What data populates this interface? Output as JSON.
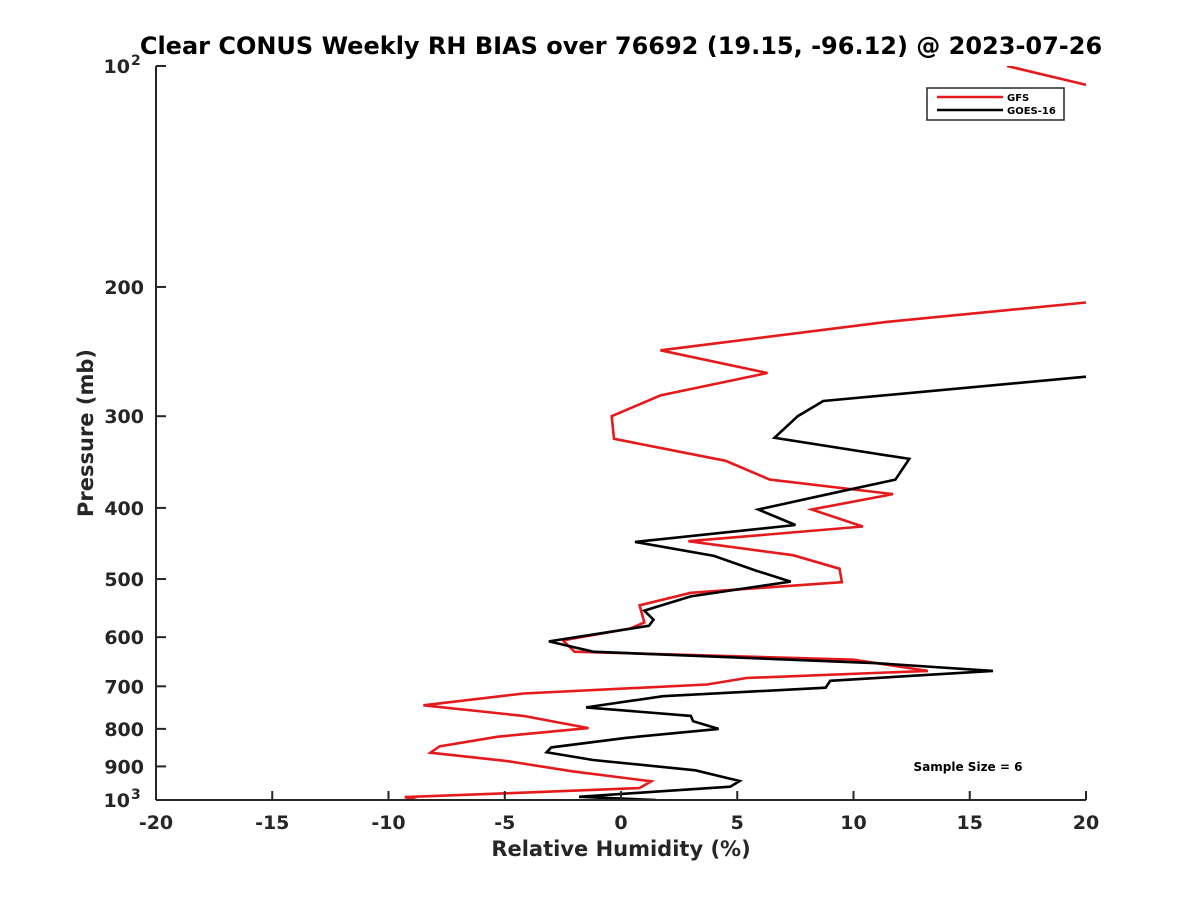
{
  "chart_data": {
    "type": "line",
    "title": "Clear CONUS Weekly RH BIAS over 76692 (19.15, -96.12) @ 2023-07-26",
    "xlabel": "Relative Humidity (%)",
    "ylabel": "Pressure (mb)",
    "xlim": [
      -20,
      20
    ],
    "ylim": [
      100,
      1000
    ],
    "yscale": "log",
    "yreversed": true,
    "grid": false,
    "legend_position": "top-right",
    "annotation": "Sample Size = 6",
    "x_ticks": [
      -20,
      -15,
      -10,
      -5,
      0,
      5,
      10,
      15,
      20
    ],
    "x_tick_labels": [
      "-20",
      "-15",
      "-10",
      "-5",
      "0",
      "5",
      "10",
      "15",
      "20"
    ],
    "y_ticks": [
      200,
      300,
      400,
      500,
      600,
      700,
      800,
      900
    ],
    "y_tick_labels": [
      "200",
      "300",
      "400",
      "500",
      "600",
      "700",
      "800",
      "900"
    ],
    "y_power_ticks": [
      {
        "value": 100,
        "base": "10",
        "exp": "2"
      },
      {
        "value": 1000,
        "base": "10",
        "exp": "3"
      }
    ],
    "series": [
      {
        "name": "GFS",
        "color": "#e41a1c",
        "points": [
          [
            16.6,
            100
          ],
          [
            20.5,
            107
          ],
          [
            20.0,
            210
          ],
          [
            11.5,
            223
          ],
          [
            1.7,
            244
          ],
          [
            6.3,
            262
          ],
          [
            1.7,
            281
          ],
          [
            -0.4,
            300
          ],
          [
            -0.3,
            322
          ],
          [
            4.5,
            345
          ],
          [
            6.4,
            366
          ],
          [
            11.7,
            383
          ],
          [
            8.2,
            402
          ],
          [
            10.4,
            424
          ],
          [
            2.9,
            444
          ],
          [
            7.4,
            464
          ],
          [
            9.4,
            484
          ],
          [
            9.5,
            505
          ],
          [
            3.0,
            522
          ],
          [
            0.8,
            543
          ],
          [
            1.0,
            573
          ],
          [
            0.4,
            584
          ],
          [
            -2.5,
            606
          ],
          [
            -2.0,
            628
          ],
          [
            10.0,
            644
          ],
          [
            13.2,
            667
          ],
          [
            5.4,
            682
          ],
          [
            3.7,
            696
          ],
          [
            -4.2,
            716
          ],
          [
            -8.5,
            743
          ],
          [
            -4.2,
            768
          ],
          [
            -1.4,
            798
          ],
          [
            -5.3,
            820
          ],
          [
            -7.8,
            845
          ],
          [
            -8.2,
            862
          ],
          [
            -4.9,
            885
          ],
          [
            -2.1,
            914
          ],
          [
            1.3,
            943
          ],
          [
            0.8,
            963
          ],
          [
            -4.8,
            979
          ],
          [
            -9.3,
            991
          ],
          [
            -8.8,
            1000
          ]
        ]
      },
      {
        "name": "GOES-16",
        "color": "#000000",
        "points": [
          [
            20.0,
            265
          ],
          [
            8.7,
            286
          ],
          [
            7.6,
            300
          ],
          [
            6.6,
            321
          ],
          [
            12.4,
            343
          ],
          [
            11.8,
            366
          ],
          [
            9.1,
            382
          ],
          [
            5.9,
            402
          ],
          [
            7.5,
            422
          ],
          [
            0.6,
            445
          ],
          [
            4.0,
            465
          ],
          [
            5.8,
            487
          ],
          [
            7.3,
            504
          ],
          [
            3.0,
            528
          ],
          [
            1.0,
            552
          ],
          [
            1.4,
            568
          ],
          [
            1.2,
            579
          ],
          [
            -3.1,
            608
          ],
          [
            -1.2,
            628
          ],
          [
            11.0,
            651
          ],
          [
            16.0,
            667
          ],
          [
            9.0,
            688
          ],
          [
            8.8,
            703
          ],
          [
            1.8,
            722
          ],
          [
            -1.5,
            748
          ],
          [
            3.0,
            768
          ],
          [
            3.1,
            781
          ],
          [
            4.2,
            800
          ],
          [
            0.2,
            823
          ],
          [
            -3.0,
            848
          ],
          [
            -3.2,
            861
          ],
          [
            -1.2,
            882
          ],
          [
            3.2,
            911
          ],
          [
            5.1,
            942
          ],
          [
            4.7,
            959
          ],
          [
            1.7,
            973
          ],
          [
            -1.8,
            990
          ],
          [
            1.5,
            1000
          ]
        ]
      }
    ]
  }
}
